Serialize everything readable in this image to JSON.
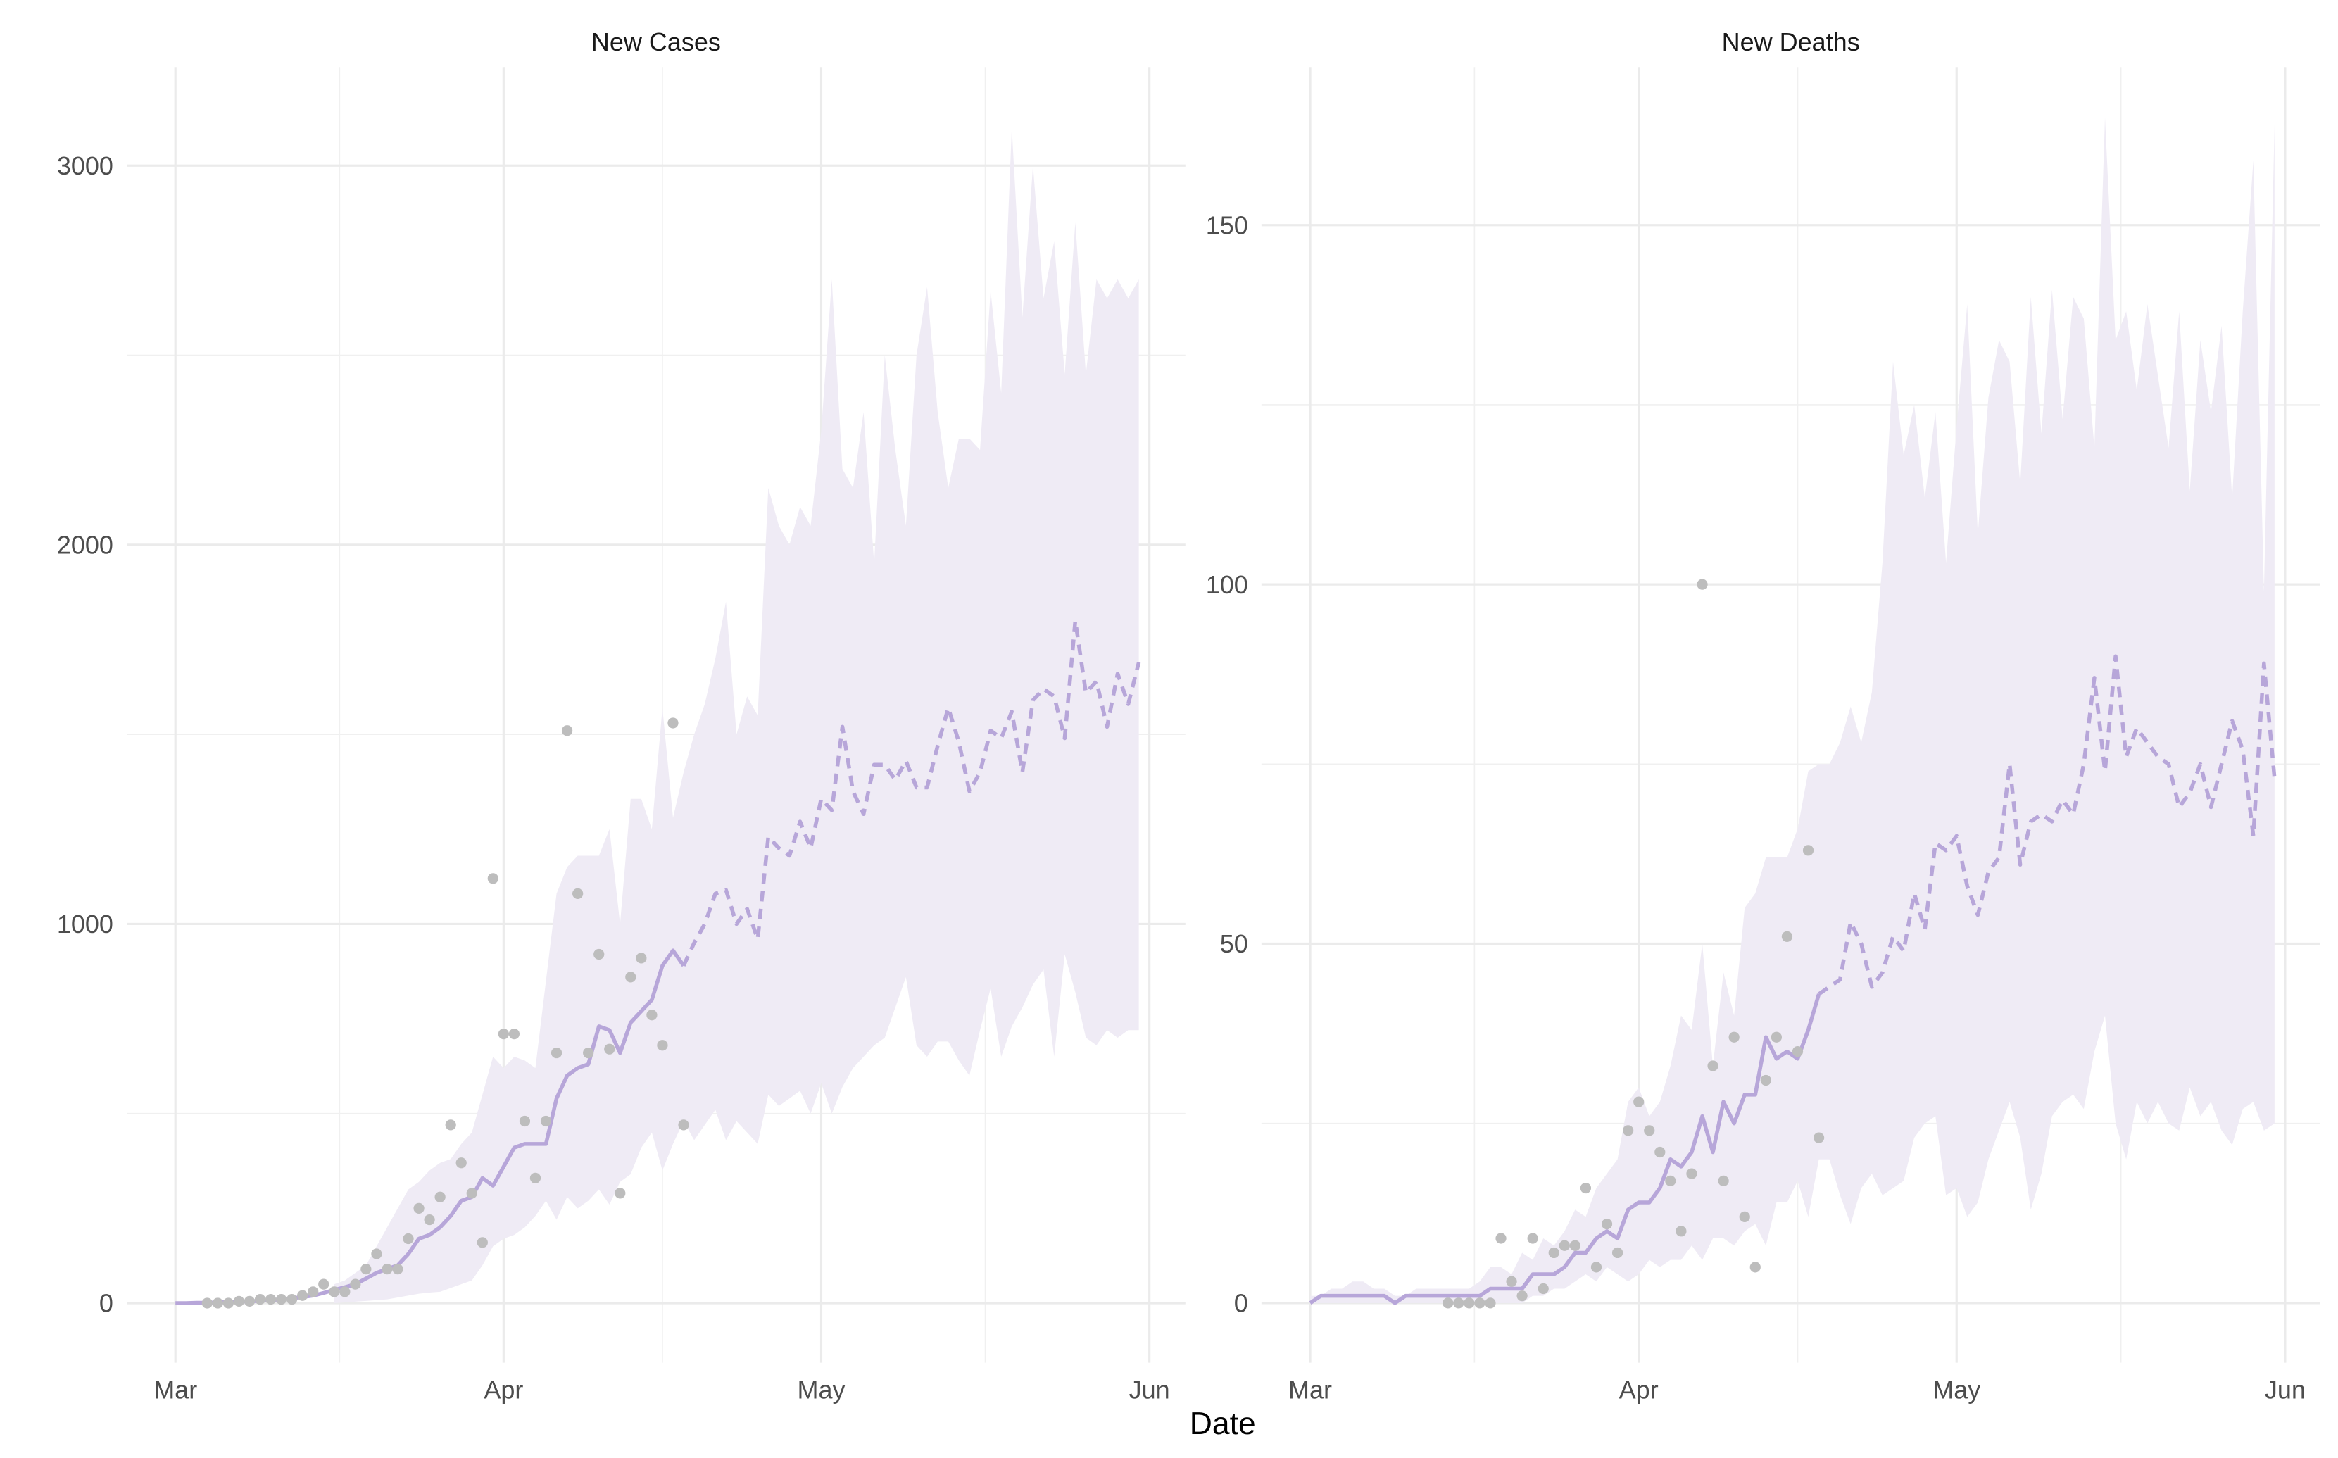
{
  "xlabel": "Date",
  "chart_data": [
    {
      "type": "line",
      "title": "New Cases",
      "x": [
        0,
        1,
        2,
        3,
        4,
        5,
        6,
        7,
        8,
        9,
        10,
        11,
        12,
        13,
        14,
        15,
        16,
        17,
        18,
        19,
        20,
        21,
        22,
        23,
        24,
        25,
        26,
        27,
        28,
        29,
        30,
        31,
        32,
        33,
        34,
        35,
        36,
        37,
        38,
        39,
        40,
        41,
        42,
        43,
        44,
        45,
        46,
        47,
        48,
        49,
        50,
        51,
        52,
        53,
        54,
        55,
        56,
        57,
        58,
        59,
        60,
        61,
        62,
        63,
        64,
        65,
        66,
        67,
        68,
        69,
        70,
        71,
        72,
        73,
        74,
        75,
        76,
        77,
        78,
        79,
        80,
        81,
        82,
        83,
        84,
        85,
        86,
        87,
        88,
        89,
        90,
        91
      ],
      "series": [
        {
          "color": "#b7a6d9",
          "dash": false,
          "values": [
            0,
            0,
            1,
            1,
            2,
            3,
            4,
            5,
            6,
            8,
            10,
            13,
            16,
            20,
            27,
            35,
            42,
            50,
            65,
            80,
            90,
            100,
            130,
            170,
            180,
            200,
            230,
            270,
            280,
            330,
            310,
            360,
            410,
            420,
            420,
            420,
            540,
            600,
            620,
            630,
            730,
            720,
            660,
            740,
            770,
            800,
            890,
            930,
            890,
            null,
            null,
            null,
            null,
            null,
            null,
            null,
            null,
            null,
            null,
            null,
            null,
            null,
            null,
            null,
            null,
            null,
            null,
            null,
            null,
            null,
            null,
            null,
            null,
            null,
            null,
            null,
            null,
            null,
            null,
            null,
            null,
            null,
            null,
            null,
            null,
            null,
            null,
            null,
            null,
            null,
            null,
            null
          ]
        },
        {
          "color": "#b7a6d9",
          "dash": true,
          "values": [
            null,
            null,
            null,
            null,
            null,
            null,
            null,
            null,
            null,
            null,
            null,
            null,
            null,
            null,
            null,
            null,
            null,
            null,
            null,
            null,
            null,
            null,
            null,
            null,
            null,
            null,
            null,
            null,
            null,
            null,
            null,
            null,
            null,
            null,
            null,
            null,
            null,
            null,
            null,
            null,
            null,
            null,
            null,
            null,
            null,
            null,
            null,
            null,
            890,
            950,
            1000,
            1080,
            1090,
            1000,
            1040,
            960,
            1230,
            1200,
            1180,
            1270,
            1200,
            1330,
            1300,
            1520,
            1350,
            1290,
            1420,
            1420,
            1380,
            1430,
            1360,
            1360,
            1470,
            1570,
            1480,
            1350,
            1400,
            1510,
            1490,
            1560,
            1400,
            1590,
            1620,
            1600,
            1490,
            1800,
            1610,
            1640,
            1520,
            1660,
            1580,
            1690
          ]
        }
      ],
      "band": {
        "color": "#efebf5",
        "lower": [
          null,
          null,
          null,
          null,
          null,
          null,
          null,
          null,
          null,
          null,
          null,
          null,
          null,
          null,
          null,
          0,
          2,
          4,
          6,
          8,
          10,
          15,
          20,
          25,
          28,
          30,
          40,
          50,
          60,
          100,
          150,
          170,
          180,
          200,
          230,
          270,
          220,
          280,
          250,
          270,
          300,
          260,
          320,
          340,
          410,
          450,
          350,
          420,
          480,
          430,
          470,
          510,
          430,
          480,
          450,
          420,
          550,
          520,
          540,
          560,
          500,
          580,
          500,
          570,
          620,
          650,
          680,
          700,
          780,
          860,
          680,
          650,
          690,
          690,
          640,
          600,
          720,
          830,
          650,
          730,
          780,
          840,
          880,
          650,
          920,
          820,
          700,
          680,
          720,
          700,
          720,
          720
        ],
        "upper": [
          null,
          null,
          null,
          null,
          null,
          null,
          null,
          null,
          null,
          null,
          null,
          null,
          null,
          null,
          null,
          50,
          60,
          80,
          100,
          150,
          200,
          250,
          300,
          320,
          350,
          370,
          380,
          420,
          450,
          550,
          650,
          620,
          650,
          640,
          620,
          850,
          1080,
          1150,
          1180,
          1180,
          1180,
          1250,
          1000,
          1330,
          1330,
          1250,
          1570,
          1280,
          1400,
          1500,
          1580,
          1700,
          1850,
          1500,
          1600,
          1550,
          2150,
          2050,
          2000,
          2100,
          2050,
          2300,
          2700,
          2200,
          2150,
          2350,
          1950,
          2500,
          2250,
          2050,
          2500,
          2680,
          2350,
          2150,
          2280,
          2280,
          2250,
          2670,
          2400,
          3100,
          2600,
          3000,
          2650,
          2800,
          2450,
          2850,
          2450,
          2700,
          2650,
          2700,
          2650,
          2700
        ]
      },
      "points": {
        "color": "#bdbdbd",
        "x": [
          3,
          4,
          5,
          6,
          7,
          8,
          9,
          10,
          11,
          12,
          13,
          14,
          15,
          16,
          17,
          18,
          19,
          20,
          21,
          22,
          23,
          24,
          25,
          26,
          27,
          28,
          29,
          30,
          31,
          32,
          33,
          34,
          35,
          36,
          37,
          38,
          39,
          40,
          41,
          42,
          43,
          44,
          45,
          46,
          47,
          48
        ],
        "values": [
          0,
          0,
          0,
          5,
          5,
          10,
          10,
          10,
          10,
          20,
          30,
          50,
          30,
          30,
          50,
          90,
          130,
          90,
          90,
          170,
          250,
          220,
          280,
          470,
          370,
          290,
          160,
          1120,
          710,
          710,
          480,
          330,
          480,
          660,
          1510,
          1080,
          660,
          920,
          670,
          290,
          860,
          910,
          760,
          680,
          1530,
          470
        ]
      },
      "xlim": [
        -4.6,
        95.4
      ],
      "xticks": [
        {
          "value": 0,
          "label": "Mar"
        },
        {
          "value": 31,
          "label": "Apr"
        },
        {
          "value": 61,
          "label": "May"
        },
        {
          "value": 92,
          "label": "Jun"
        }
      ],
      "minor_xticks": [
        15.5,
        46,
        76.5
      ],
      "ylim": [
        -157,
        3260
      ],
      "yticks": [
        0,
        1000,
        2000,
        3000
      ],
      "minor_yticks": [
        500,
        1500,
        2500
      ],
      "grid": true
    },
    {
      "type": "line",
      "title": "New Deaths",
      "x": [
        0,
        1,
        2,
        3,
        4,
        5,
        6,
        7,
        8,
        9,
        10,
        11,
        12,
        13,
        14,
        15,
        16,
        17,
        18,
        19,
        20,
        21,
        22,
        23,
        24,
        25,
        26,
        27,
        28,
        29,
        30,
        31,
        32,
        33,
        34,
        35,
        36,
        37,
        38,
        39,
        40,
        41,
        42,
        43,
        44,
        45,
        46,
        47,
        48,
        49,
        50,
        51,
        52,
        53,
        54,
        55,
        56,
        57,
        58,
        59,
        60,
        61,
        62,
        63,
        64,
        65,
        66,
        67,
        68,
        69,
        70,
        71,
        72,
        73,
        74,
        75,
        76,
        77,
        78,
        79,
        80,
        81,
        82,
        83,
        84,
        85,
        86,
        87,
        88,
        89,
        90,
        91
      ],
      "series": [
        {
          "color": "#b7a6d9",
          "dash": false,
          "values": [
            0,
            1,
            1,
            1,
            1,
            1,
            1,
            1,
            0,
            1,
            1,
            1,
            1,
            1,
            1,
            1,
            1,
            2,
            2,
            2,
            2,
            4,
            4,
            4,
            5,
            7,
            7,
            9,
            10,
            9,
            13,
            14,
            14,
            16,
            20,
            19,
            21,
            26,
            21,
            28,
            25,
            29,
            29,
            37,
            34,
            35,
            34,
            38,
            43,
            null,
            null,
            null,
            null,
            null,
            null,
            null,
            null,
            null,
            null,
            null,
            null,
            null,
            null,
            null,
            null,
            null,
            null,
            null,
            null,
            null,
            null,
            null,
            null,
            null,
            null,
            null,
            null,
            null,
            null,
            null,
            null,
            null,
            null,
            null,
            null,
            null,
            null,
            null,
            null,
            null,
            null,
            null
          ]
        },
        {
          "color": "#b7a6d9",
          "dash": true,
          "values": [
            null,
            null,
            null,
            null,
            null,
            null,
            null,
            null,
            null,
            null,
            null,
            null,
            null,
            null,
            null,
            null,
            null,
            null,
            null,
            null,
            null,
            null,
            null,
            null,
            null,
            null,
            null,
            null,
            null,
            null,
            null,
            null,
            null,
            null,
            null,
            null,
            null,
            null,
            null,
            null,
            null,
            null,
            null,
            null,
            null,
            null,
            null,
            null,
            43,
            44,
            45,
            53,
            50,
            44,
            46,
            51,
            49,
            57,
            52,
            64,
            63,
            65,
            58,
            54,
            60,
            62,
            75,
            61,
            67,
            68,
            67,
            70,
            68,
            75,
            87,
            74,
            90,
            76,
            80,
            78,
            76,
            75,
            69,
            71,
            75,
            69,
            75,
            81,
            77,
            65,
            89,
            73
          ]
        }
      ],
      "band": {
        "color": "#efebf5",
        "lower": [
          0,
          0,
          0,
          0,
          0,
          0,
          0,
          0,
          0,
          0,
          0,
          0,
          0,
          0,
          0,
          0,
          0,
          0,
          0,
          0,
          0,
          1,
          1,
          2,
          2,
          3,
          4,
          3,
          5,
          4,
          3,
          4,
          6,
          5,
          6,
          6,
          8,
          6,
          9,
          9,
          8,
          10,
          11,
          8,
          14,
          14,
          17,
          12,
          20,
          20,
          15,
          11,
          16,
          18,
          15,
          16,
          17,
          23,
          25,
          26,
          15,
          16,
          12,
          14,
          20,
          24,
          28,
          23,
          13,
          18,
          26,
          28,
          29,
          27,
          35,
          40,
          25,
          20,
          28,
          25,
          28,
          25,
          24,
          30,
          26,
          28,
          24,
          22,
          27,
          28,
          24,
          25
        ],
        "upper": [
          1,
          1,
          2,
          2,
          3,
          3,
          2,
          2,
          1,
          1,
          2,
          2,
          2,
          2,
          2,
          2,
          3,
          5,
          5,
          4,
          7,
          6,
          9,
          8,
          10,
          13,
          12,
          16,
          18,
          20,
          28,
          30,
          26,
          28,
          33,
          40,
          38,
          50,
          33,
          46,
          40,
          55,
          57,
          62,
          62,
          62,
          66,
          74,
          75,
          75,
          78,
          83,
          78,
          85,
          103,
          131,
          118,
          125,
          112,
          124,
          103,
          122,
          139,
          107,
          126,
          134,
          131,
          114,
          140,
          121,
          141,
          123,
          140,
          137,
          119,
          165,
          134,
          138,
          127,
          139,
          129,
          119,
          138,
          113,
          134,
          124,
          136,
          112,
          138,
          159,
          99,
          164
        ]
      },
      "points": {
        "color": "#bdbdbd",
        "x": [
          13,
          14,
          15,
          16,
          17,
          18,
          19,
          20,
          21,
          22,
          23,
          24,
          25,
          26,
          27,
          28,
          29,
          30,
          31,
          32,
          33,
          34,
          35,
          36,
          37,
          38,
          39,
          40,
          41,
          42,
          43,
          44,
          45,
          46,
          47,
          48
        ],
        "values": [
          0,
          0,
          0,
          0,
          0,
          9,
          3,
          1,
          9,
          2,
          7,
          8,
          8,
          16,
          5,
          11,
          7,
          24,
          28,
          24,
          21,
          17,
          10,
          18,
          100,
          33,
          17,
          37,
          12,
          5,
          31,
          37,
          51,
          35,
          63,
          23
        ]
      },
      "xlim": [
        -4.6,
        95.3
      ],
      "xticks": [
        {
          "value": 0,
          "label": "Mar"
        },
        {
          "value": 31,
          "label": "Apr"
        },
        {
          "value": 61,
          "label": "May"
        },
        {
          "value": 92,
          "label": "Jun"
        }
      ],
      "minor_xticks": [
        15.5,
        46,
        76.5
      ],
      "ylim": [
        -8.3,
        172
      ],
      "yticks": [
        0,
        50,
        100,
        150
      ],
      "minor_yticks": [
        25,
        75,
        125
      ],
      "grid": true
    }
  ]
}
